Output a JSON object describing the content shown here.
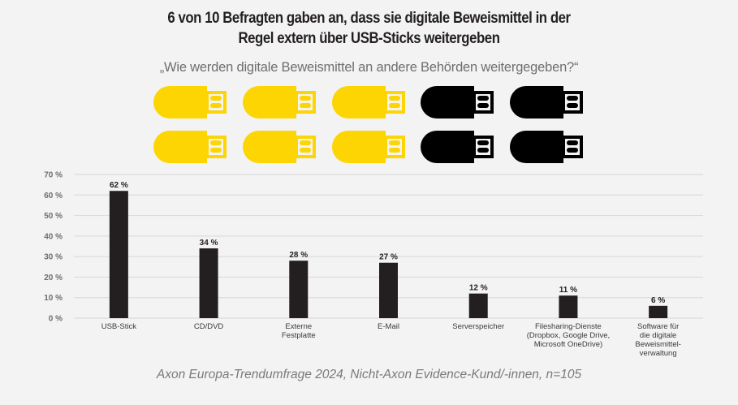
{
  "header": {
    "title_lines": [
      "6 von 10 Befragten gaben an, dass sie digitale Beweismittel in der",
      "Regel extern über USB-Sticks weitergeben"
    ],
    "subtitle": "„Wie werden digitale Beweismittel an andere Behörden weitergegeben?“"
  },
  "icon_array": {
    "icon": "usb-stick-icon",
    "total": 10,
    "highlighted": 6,
    "highlight_color": "#fdd503",
    "other_color": "#000000"
  },
  "footer": {
    "source": "Axon Europa-Trendumfrage 2024, Nicht-Axon Evidence-Kund/-innen, n=105"
  },
  "chart_data": {
    "type": "bar",
    "title": "6 von 10 Befragten gaben an, dass sie digitale Beweismittel in der Regel extern über USB-Sticks weitergeben",
    "xlabel": "",
    "ylabel": "",
    "categories": [
      [
        "USB-Stick"
      ],
      [
        "CD/DVD"
      ],
      [
        "Externe",
        "Festplatte"
      ],
      [
        "E-Mail"
      ],
      [
        "Serverspeicher"
      ],
      [
        "Filesharing-Dienste",
        "(Dropbox, Google Drive,",
        "Microsoft OneDrive)"
      ],
      [
        "Software für",
        "die digitale",
        "Beweismittel-",
        "verwaltung"
      ]
    ],
    "values": [
      62,
      34,
      28,
      27,
      12,
      11,
      6
    ],
    "value_labels": [
      "62 %",
      "34 %",
      "28 %",
      "27 %",
      "12 %",
      "11 %",
      "6 %"
    ],
    "ylim": [
      0,
      70
    ],
    "yticks": [
      0,
      10,
      20,
      30,
      40,
      50,
      60,
      70
    ],
    "ytick_labels": [
      "0 %",
      "10 %",
      "20 %",
      "30 %",
      "40 %",
      "50 %",
      "60 %",
      "70 %"
    ],
    "grid": true,
    "legend": "none",
    "bar_color": "#231f20",
    "grid_color": "#dcdcdc"
  }
}
